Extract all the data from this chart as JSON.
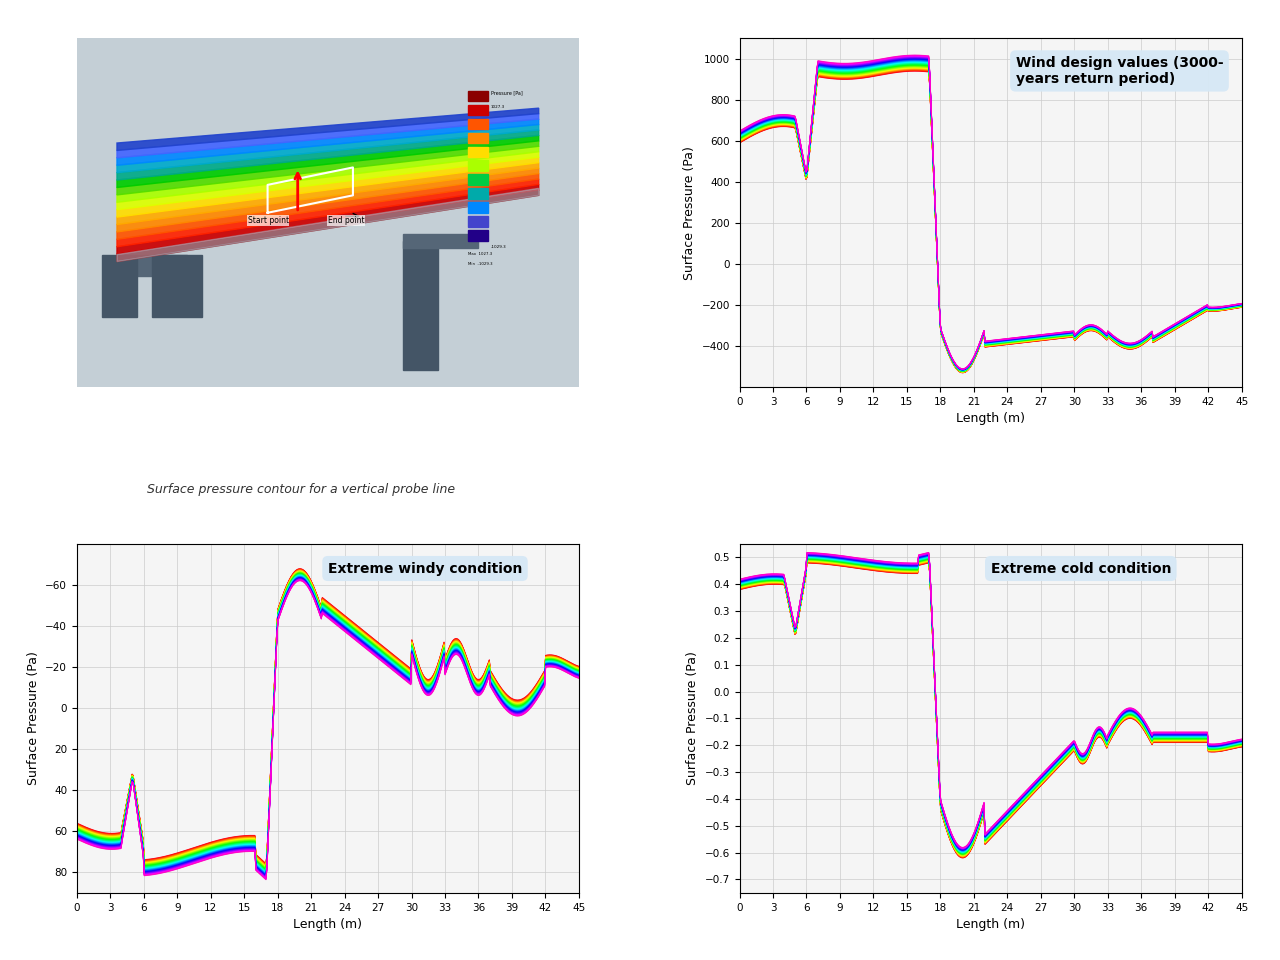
{
  "title_image_caption": "Surface pressure contour for a vertical probe line",
  "plot1_title": "Wind design values (3000-\nyears return period)",
  "plot2_title": "Extreme windy condition",
  "plot3_title": "Extreme cold condition",
  "xlabel": "Length (m)",
  "ylabel": "Surface Pressure (Pa)",
  "x_ticks": [
    0,
    3,
    6,
    9,
    12,
    15,
    18,
    21,
    24,
    27,
    30,
    33,
    36,
    39,
    42,
    45
  ],
  "x_max": 45,
  "plot1_ylim": [
    -600,
    1100
  ],
  "plot1_yticks": [
    -400,
    -200,
    0,
    200,
    400,
    600,
    800,
    1000
  ],
  "plot2_ylim": [
    -80,
    90
  ],
  "plot2_yticks": [
    -60,
    -40,
    -20,
    0,
    20,
    40,
    60,
    80
  ],
  "plot2_yinverted": true,
  "plot3_ylim": [
    -0.75,
    0.55
  ],
  "plot3_yticks": [
    -0.7,
    -0.6,
    -0.5,
    -0.4,
    -0.3,
    -0.2,
    -0.1,
    0,
    0.1,
    0.2,
    0.3,
    0.4,
    0.5
  ],
  "n_lines": 60,
  "background_color": "#ffffff",
  "grid_color": "#cccccc",
  "annotation_box_color": "#d6e8f5"
}
